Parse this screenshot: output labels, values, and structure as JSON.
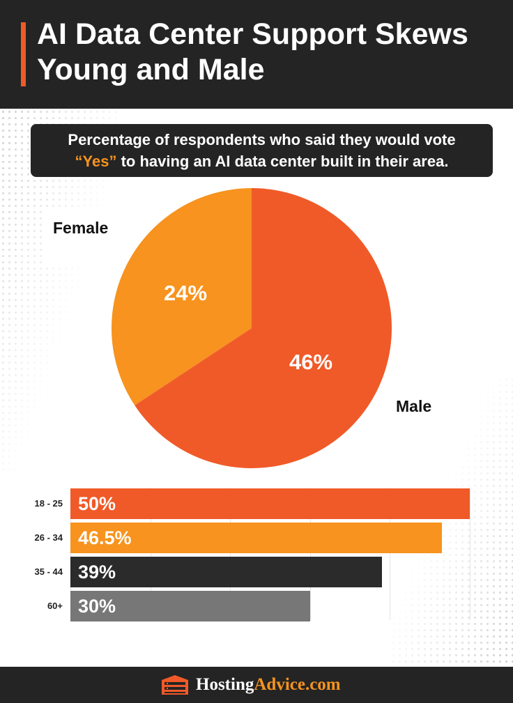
{
  "header": {
    "title_line1": "AI Data Center Support Skews",
    "title_line2": "Young and Male"
  },
  "subtitle": {
    "line1": "Percentage of respondents who said they would vote",
    "yes": "“Yes”",
    "line2_rest": " to having an AI data center built in their area."
  },
  "colors": {
    "male": "#f05a28",
    "female": "#f7931e",
    "dark": "#2b2b2b",
    "gray": "#777777"
  },
  "chart_data": [
    {
      "type": "pie",
      "title": "Percentage of respondents who said they would vote “Yes” to having an AI data center built in their area.",
      "categories": [
        "Female",
        "Male"
      ],
      "values": [
        24,
        46
      ],
      "value_labels": [
        "24%",
        "46%"
      ],
      "colors": [
        "#f7931e",
        "#f05a28"
      ]
    },
    {
      "type": "bar",
      "orientation": "horizontal",
      "categories": [
        "18 - 25",
        "26 - 34",
        "35 - 44",
        "60+"
      ],
      "values": [
        50,
        46.5,
        39,
        30
      ],
      "value_labels": [
        "50%",
        "46.5%",
        "39%",
        "30%"
      ],
      "colors": [
        "#f05a28",
        "#f7931e",
        "#2b2b2b",
        "#777777"
      ],
      "xlim": [
        0,
        50
      ],
      "grid": true
    }
  ],
  "footer": {
    "brand_part1": "Hosting",
    "brand_part2": "Advice.com",
    "logo_icon": "server-rack-icon"
  }
}
